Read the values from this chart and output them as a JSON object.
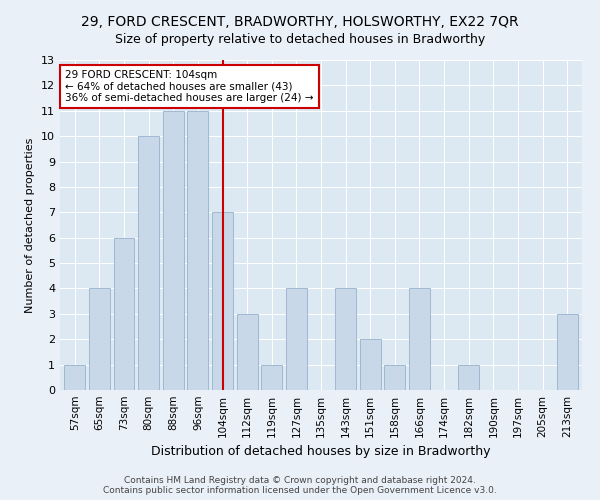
{
  "title": "29, FORD CRESCENT, BRADWORTHY, HOLSWORTHY, EX22 7QR",
  "subtitle": "Size of property relative to detached houses in Bradworthy",
  "xlabel": "Distribution of detached houses by size in Bradworthy",
  "ylabel": "Number of detached properties",
  "categories": [
    "57sqm",
    "65sqm",
    "73sqm",
    "80sqm",
    "88sqm",
    "96sqm",
    "104sqm",
    "112sqm",
    "119sqm",
    "127sqm",
    "135sqm",
    "143sqm",
    "151sqm",
    "158sqm",
    "166sqm",
    "174sqm",
    "182sqm",
    "190sqm",
    "197sqm",
    "205sqm",
    "213sqm"
  ],
  "values": [
    1,
    4,
    6,
    10,
    11,
    11,
    7,
    3,
    1,
    4,
    0,
    4,
    2,
    1,
    4,
    0,
    1,
    0,
    0,
    0,
    3
  ],
  "bar_color": "#c8d8e8",
  "bar_edge_color": "#a0b8d0",
  "highlight_index": 6,
  "vline_color": "#cc0000",
  "annotation_line1": "29 FORD CRESCENT: 104sqm",
  "annotation_line2": "← 64% of detached houses are smaller (43)",
  "annotation_line3": "36% of semi-detached houses are larger (24) →",
  "annotation_box_color": "#ffffff",
  "annotation_box_edge": "#cc0000",
  "ylim": [
    0,
    13
  ],
  "yticks": [
    0,
    1,
    2,
    3,
    4,
    5,
    6,
    7,
    8,
    9,
    10,
    11,
    12,
    13
  ],
  "footer1": "Contains HM Land Registry data © Crown copyright and database right 2024.",
  "footer2": "Contains public sector information licensed under the Open Government Licence v3.0.",
  "bg_color": "#eaf0f8",
  "plot_bg_color": "#dce8f2",
  "grid_color": "#ffffff",
  "title_fontsize": 10,
  "subtitle_fontsize": 9,
  "ylabel_fontsize": 8,
  "xlabel_fontsize": 9,
  "tick_fontsize": 7.5,
  "annotation_fontsize": 7.5,
  "footer_fontsize": 6.5
}
